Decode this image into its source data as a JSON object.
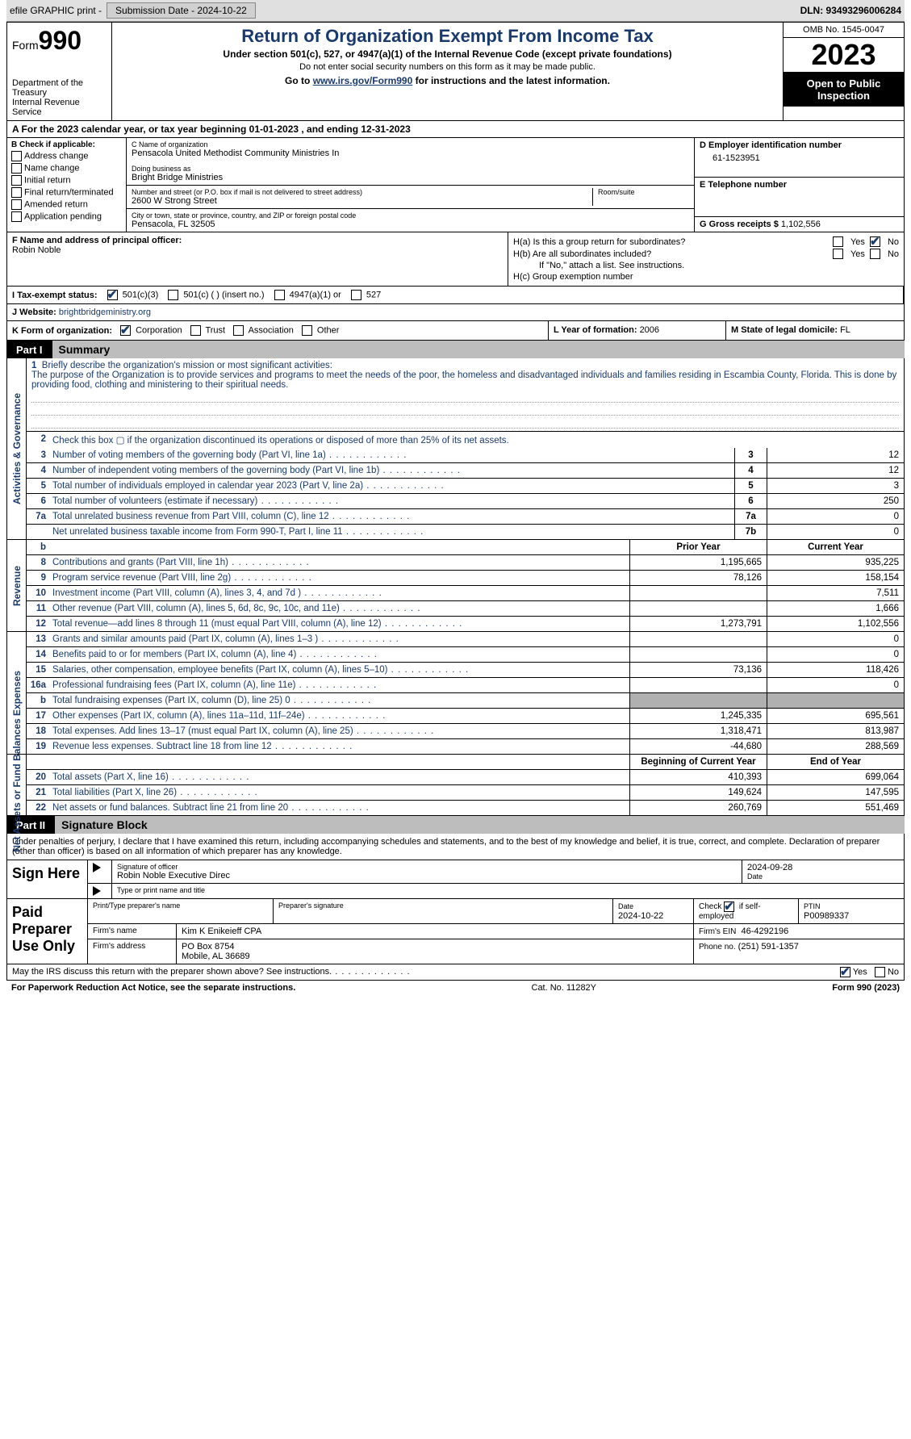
{
  "topbar": {
    "efile": "efile GRAPHIC print -",
    "submission_label": "Submission Date - 2024-10-22",
    "dln_label": "DLN: 93493296006284"
  },
  "header": {
    "form_prefix": "Form",
    "form_no": "990",
    "title": "Return of Organization Exempt From Income Tax",
    "sub": "Under section 501(c), 527, or 4947(a)(1) of the Internal Revenue Code (except private foundations)",
    "sub2": "Do not enter social security numbers on this form as it may be made public.",
    "sub3_a": "Go to ",
    "sub3_link": "www.irs.gov/Form990",
    "sub3_b": " for instructions and the latest information.",
    "dept1": "Department of the Treasury",
    "dept2": "Internal Revenue Service",
    "omb": "OMB No. 1545-0047",
    "year": "2023",
    "pubinsp": "Open to Public Inspection"
  },
  "row_a": "A For the 2023 calendar year, or tax year beginning 01-01-2023     , and ending 12-31-2023",
  "col_b": {
    "hdr": "B Check if applicable:",
    "items": [
      "Address change",
      "Name change",
      "Initial return",
      "Final return/terminated",
      "Amended return",
      "Application pending"
    ]
  },
  "col_c": {
    "name_lbl": "C Name of organization",
    "name": "Pensacola United Methodist Community Ministries In",
    "dba_lbl": "Doing business as",
    "dba": "Bright Bridge Ministries",
    "addr_lbl": "Number and street (or P.O. box if mail is not delivered to street address)",
    "addr": "2600 W Strong Street",
    "room_lbl": "Room/suite",
    "city_lbl": "City or town, state or province, country, and ZIP or foreign postal code",
    "city": "Pensacola, FL   32505"
  },
  "col_d": {
    "ein_lbl": "D Employer identification number",
    "ein": "61-1523951",
    "phone_lbl": "E Telephone number",
    "gross_lbl": "G Gross receipts $ ",
    "gross": "1,102,556"
  },
  "row_f": {
    "lbl": "F  Name and address of principal officer:",
    "name": "Robin Noble"
  },
  "row_h": {
    "ha": "H(a)  Is this a group return for subordinates?",
    "hb": "H(b)  Are all subordinates included?",
    "hb2": "If \"No,\" attach a list. See instructions.",
    "hc": "H(c)  Group exemption number  ",
    "yes": "Yes",
    "no": "No"
  },
  "row_i": {
    "lbl": "I    Tax-exempt status:",
    "opts": [
      "501(c)(3)",
      "501(c) (  ) (insert no.)",
      "4947(a)(1) or",
      "527"
    ]
  },
  "row_j": {
    "lbl": "J    Website: ",
    "val": "brightbridgeministry.org"
  },
  "row_k": {
    "lbl": "K Form of organization:",
    "opts": [
      "Corporation",
      "Trust",
      "Association",
      "Other"
    ]
  },
  "row_l": {
    "lbl": "L Year of formation: ",
    "val": "2006"
  },
  "row_m": {
    "lbl": "M State of legal domicile: ",
    "val": "FL"
  },
  "parts": {
    "p1": "Part I",
    "p1t": "Summary",
    "p2": "Part II",
    "p2t": "Signature Block"
  },
  "vtabs": {
    "ag": "Activities & Governance",
    "rev": "Revenue",
    "exp": "Expenses",
    "na": "Net Assets or Fund Balances"
  },
  "mission": {
    "num": "1",
    "lbl": "Briefly describe the organization's mission or most significant activities:",
    "txt": "The purpose of the Organization is to provide services and programs to meet the needs of the poor, the homeless and disadvantaged individuals and families residing in Escambia County, Florida. This is done by providing food, clothing and ministering to their spiritual needs."
  },
  "line2": "Check this box  ▢  if the organization discontinued its operations or disposed of more than 25% of its net assets.",
  "ag_rows": [
    {
      "n": "3",
      "t": "Number of voting members of the governing body (Part VI, line 1a)",
      "b": "3",
      "v": "12"
    },
    {
      "n": "4",
      "t": "Number of independent voting members of the governing body (Part VI, line 1b)",
      "b": "4",
      "v": "12"
    },
    {
      "n": "5",
      "t": "Total number of individuals employed in calendar year 2023 (Part V, line 2a)",
      "b": "5",
      "v": "3"
    },
    {
      "n": "6",
      "t": "Total number of volunteers (estimate if necessary)",
      "b": "6",
      "v": "250"
    },
    {
      "n": "7a",
      "t": "Total unrelated business revenue from Part VIII, column (C), line 12",
      "b": "7a",
      "v": "0"
    },
    {
      "n": "",
      "t": "Net unrelated business taxable income from Form 990-T, Part I, line 11",
      "b": "7b",
      "v": "0"
    }
  ],
  "colhdr": {
    "py": "Prior Year",
    "cy": "Current Year",
    "boy": "Beginning of Current Year",
    "eoy": "End of Year"
  },
  "rev_rows": [
    {
      "n": "8",
      "t": "Contributions and grants (Part VIII, line 1h)",
      "py": "1,195,665",
      "cy": "935,225"
    },
    {
      "n": "9",
      "t": "Program service revenue (Part VIII, line 2g)",
      "py": "78,126",
      "cy": "158,154"
    },
    {
      "n": "10",
      "t": "Investment income (Part VIII, column (A), lines 3, 4, and 7d )",
      "py": "",
      "cy": "7,511"
    },
    {
      "n": "11",
      "t": "Other revenue (Part VIII, column (A), lines 5, 6d, 8c, 9c, 10c, and 11e)",
      "py": "",
      "cy": "1,666"
    },
    {
      "n": "12",
      "t": "Total revenue—add lines 8 through 11 (must equal Part VIII, column (A), line 12)",
      "py": "1,273,791",
      "cy": "1,102,556"
    }
  ],
  "exp_rows": [
    {
      "n": "13",
      "t": "Grants and similar amounts paid (Part IX, column (A), lines 1–3 )",
      "py": "",
      "cy": "0"
    },
    {
      "n": "14",
      "t": "Benefits paid to or for members (Part IX, column (A), line 4)",
      "py": "",
      "cy": "0"
    },
    {
      "n": "15",
      "t": "Salaries, other compensation, employee benefits (Part IX, column (A), lines 5–10)",
      "py": "73,136",
      "cy": "118,426"
    },
    {
      "n": "16a",
      "t": "Professional fundraising fees (Part IX, column (A), line 11e)",
      "py": "",
      "cy": "0"
    },
    {
      "n": "b",
      "t": "Total fundraising expenses (Part IX, column (D), line 25) 0",
      "py": "",
      "cy": "",
      "shade": true
    },
    {
      "n": "17",
      "t": "Other expenses (Part IX, column (A), lines 11a–11d, 11f–24e)",
      "py": "1,245,335",
      "cy": "695,561"
    },
    {
      "n": "18",
      "t": "Total expenses. Add lines 13–17 (must equal Part IX, column (A), line 25)",
      "py": "1,318,471",
      "cy": "813,987"
    },
    {
      "n": "19",
      "t": "Revenue less expenses. Subtract line 18 from line 12",
      "py": "-44,680",
      "cy": "288,569"
    }
  ],
  "na_rows": [
    {
      "n": "20",
      "t": "Total assets (Part X, line 16)",
      "py": "410,393",
      "cy": "699,064"
    },
    {
      "n": "21",
      "t": "Total liabilities (Part X, line 26)",
      "py": "149,624",
      "cy": "147,595"
    },
    {
      "n": "22",
      "t": "Net assets or fund balances. Subtract line 21 from line 20",
      "py": "260,769",
      "cy": "551,469"
    }
  ],
  "sig": {
    "decl": "Under penalties of perjury, I declare that I have examined this return, including accompanying schedules and statements, and to the best of my knowledge and belief, it is true, correct, and complete. Declaration of preparer (other than officer) is based on all information of which preparer has any knowledge.",
    "sign_here": "Sign Here",
    "sig_officer": "Signature of officer",
    "sig_name": "Robin Noble  Executive Direc",
    "sig_type": "Type or print name and title",
    "date_lbl": "Date",
    "date": "2024-09-28",
    "paid": "Paid Preparer Use Only",
    "prep_name_lbl": "Print/Type preparer's name",
    "prep_sig_lbl": "Preparer's signature",
    "prep_date": "2024-10-22",
    "self_emp": "Check          if self-employed",
    "ptin_lbl": "PTIN",
    "ptin": "P00989337",
    "firm_name_lbl": "Firm's name",
    "firm_name": "Kim K Enikeieff CPA",
    "firm_ein_lbl": "Firm's EIN",
    "firm_ein": "46-4292196",
    "firm_addr_lbl": "Firm's address",
    "firm_addr1": "PO Box 8754",
    "firm_addr2": "Mobile, AL   36689",
    "firm_phone_lbl": "Phone no.",
    "firm_phone": "(251) 591-1357"
  },
  "discuss": {
    "q": "May the IRS discuss this return with the preparer shown above? See instructions.",
    "yes": "Yes",
    "no": "No"
  },
  "footer": {
    "l": "For Paperwork Reduction Act Notice, see the separate instructions.",
    "c": "Cat. No. 11282Y",
    "r": "Form 990 (2023)"
  }
}
